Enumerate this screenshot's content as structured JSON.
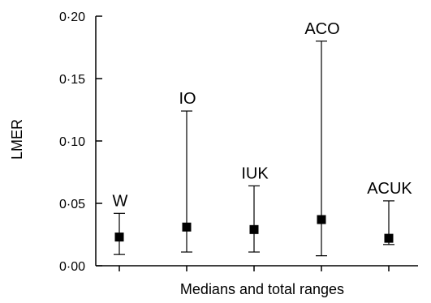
{
  "chart_data": {
    "type": "scatter",
    "ylabel": "LMER",
    "xlabel": "Medians and total ranges",
    "ylim": [
      0,
      0.2
    ],
    "yticks": [
      {
        "value": 0.0,
        "label": "0·00"
      },
      {
        "value": 0.05,
        "label": "0·05"
      },
      {
        "value": 0.1,
        "label": "0·10"
      },
      {
        "value": 0.15,
        "label": "0·15"
      },
      {
        "value": 0.2,
        "label": "0·20"
      }
    ],
    "points": [
      {
        "label": "W",
        "median": 0.023,
        "min": 0.009,
        "max": 0.042
      },
      {
        "label": "IO",
        "median": 0.031,
        "min": 0.011,
        "max": 0.124
      },
      {
        "label": "IUK",
        "median": 0.029,
        "min": 0.011,
        "max": 0.064
      },
      {
        "label": "ACO",
        "median": 0.037,
        "min": 0.008,
        "max": 0.18
      },
      {
        "label": "ACUK",
        "median": 0.022,
        "min": 0.017,
        "max": 0.052
      }
    ],
    "grid": false,
    "legend": "none",
    "color": "#000000"
  }
}
